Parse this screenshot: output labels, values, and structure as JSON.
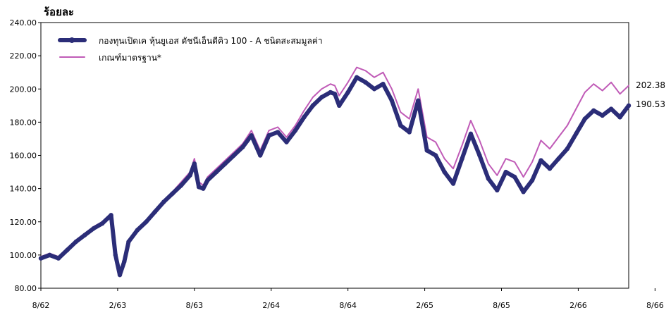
{
  "chart_data": {
    "type": "line",
    "ylabel": "ร้อยละ",
    "ylim": [
      80,
      240
    ],
    "yticks": [
      80,
      100,
      120,
      140,
      160,
      180,
      200,
      220,
      240
    ],
    "ytick_labels": [
      "80.00",
      "100.00",
      "120.00",
      "140.00",
      "160.00",
      "180.00",
      "200.00",
      "220.00",
      "240.00"
    ],
    "x_range": [
      "8/62",
      "8/66"
    ],
    "xtick_labels": [
      "8/62",
      "2/63",
      "8/63",
      "2/64",
      "8/64",
      "2/65",
      "8/65",
      "2/66",
      "8/66"
    ],
    "grid": false,
    "legend_position": "top-left",
    "series": [
      {
        "name": "กองทุนเปิดเค หุ้นยูเอส ดัชนีเอ็นดีคิว 100 - A ชนิดสะสมมูลค่า",
        "color": "#2b2d78",
        "end_label": "190.53",
        "points": [
          [
            0,
            98
          ],
          [
            2,
            100
          ],
          [
            4,
            98
          ],
          [
            6,
            103
          ],
          [
            8,
            108
          ],
          [
            10,
            112
          ],
          [
            12,
            116
          ],
          [
            14,
            119
          ],
          [
            16,
            124
          ],
          [
            17,
            100
          ],
          [
            18,
            88
          ],
          [
            19,
            96
          ],
          [
            20,
            108
          ],
          [
            22,
            115
          ],
          [
            24,
            120
          ],
          [
            26,
            126
          ],
          [
            28,
            132
          ],
          [
            30,
            137
          ],
          [
            32,
            142
          ],
          [
            34,
            148
          ],
          [
            35,
            155
          ],
          [
            36,
            141
          ],
          [
            37,
            140
          ],
          [
            38,
            145
          ],
          [
            40,
            150
          ],
          [
            42,
            155
          ],
          [
            44,
            160
          ],
          [
            46,
            165
          ],
          [
            48,
            172
          ],
          [
            50,
            160
          ],
          [
            52,
            172
          ],
          [
            54,
            174
          ],
          [
            56,
            168
          ],
          [
            58,
            175
          ],
          [
            60,
            183
          ],
          [
            62,
            190
          ],
          [
            64,
            195
          ],
          [
            66,
            198
          ],
          [
            67,
            197
          ],
          [
            68,
            190
          ],
          [
            70,
            198
          ],
          [
            72,
            207
          ],
          [
            74,
            204
          ],
          [
            76,
            200
          ],
          [
            78,
            203
          ],
          [
            80,
            193
          ],
          [
            82,
            178
          ],
          [
            84,
            174
          ],
          [
            86,
            193
          ],
          [
            88,
            163
          ],
          [
            90,
            160
          ],
          [
            92,
            150
          ],
          [
            94,
            143
          ],
          [
            96,
            158
          ],
          [
            98,
            173
          ],
          [
            100,
            160
          ],
          [
            102,
            146
          ],
          [
            104,
            139
          ],
          [
            106,
            150
          ],
          [
            108,
            147
          ],
          [
            110,
            138
          ],
          [
            112,
            145
          ],
          [
            114,
            157
          ],
          [
            116,
            152
          ],
          [
            118,
            158
          ],
          [
            120,
            164
          ],
          [
            122,
            173
          ],
          [
            124,
            182
          ],
          [
            126,
            187
          ],
          [
            128,
            184
          ],
          [
            130,
            188
          ],
          [
            132,
            183
          ],
          [
            134,
            190
          ]
        ]
      },
      {
        "name": "เกณฑ์มาตรฐาน*",
        "color": "#c05bb7",
        "end_label": "202.38",
        "points": [
          [
            0,
            99
          ],
          [
            2,
            101
          ],
          [
            4,
            99
          ],
          [
            6,
            104
          ],
          [
            8,
            109
          ],
          [
            10,
            113
          ],
          [
            12,
            117
          ],
          [
            14,
            120
          ],
          [
            16,
            125
          ],
          [
            17,
            102
          ],
          [
            18,
            90
          ],
          [
            19,
            98
          ],
          [
            20,
            109
          ],
          [
            22,
            116
          ],
          [
            24,
            121
          ],
          [
            26,
            127
          ],
          [
            28,
            133
          ],
          [
            30,
            138
          ],
          [
            32,
            144
          ],
          [
            34,
            150
          ],
          [
            35,
            158
          ],
          [
            36,
            144
          ],
          [
            37,
            142
          ],
          [
            38,
            147
          ],
          [
            40,
            152
          ],
          [
            42,
            157
          ],
          [
            44,
            162
          ],
          [
            46,
            167
          ],
          [
            48,
            175
          ],
          [
            50,
            163
          ],
          [
            52,
            175
          ],
          [
            54,
            177
          ],
          [
            56,
            171
          ],
          [
            58,
            178
          ],
          [
            60,
            187
          ],
          [
            62,
            195
          ],
          [
            64,
            200
          ],
          [
            66,
            203
          ],
          [
            67,
            202
          ],
          [
            68,
            196
          ],
          [
            70,
            204
          ],
          [
            72,
            213
          ],
          [
            74,
            211
          ],
          [
            76,
            207
          ],
          [
            78,
            210
          ],
          [
            80,
            200
          ],
          [
            82,
            186
          ],
          [
            84,
            182
          ],
          [
            86,
            200
          ],
          [
            88,
            171
          ],
          [
            90,
            168
          ],
          [
            92,
            158
          ],
          [
            94,
            152
          ],
          [
            96,
            166
          ],
          [
            98,
            181
          ],
          [
            100,
            169
          ],
          [
            102,
            155
          ],
          [
            104,
            148
          ],
          [
            106,
            158
          ],
          [
            108,
            156
          ],
          [
            110,
            147
          ],
          [
            112,
            156
          ],
          [
            114,
            169
          ],
          [
            116,
            164
          ],
          [
            118,
            171
          ],
          [
            120,
            178
          ],
          [
            122,
            188
          ],
          [
            124,
            198
          ],
          [
            126,
            203
          ],
          [
            128,
            199
          ],
          [
            130,
            204
          ],
          [
            132,
            197
          ],
          [
            134,
            202
          ]
        ]
      }
    ]
  }
}
